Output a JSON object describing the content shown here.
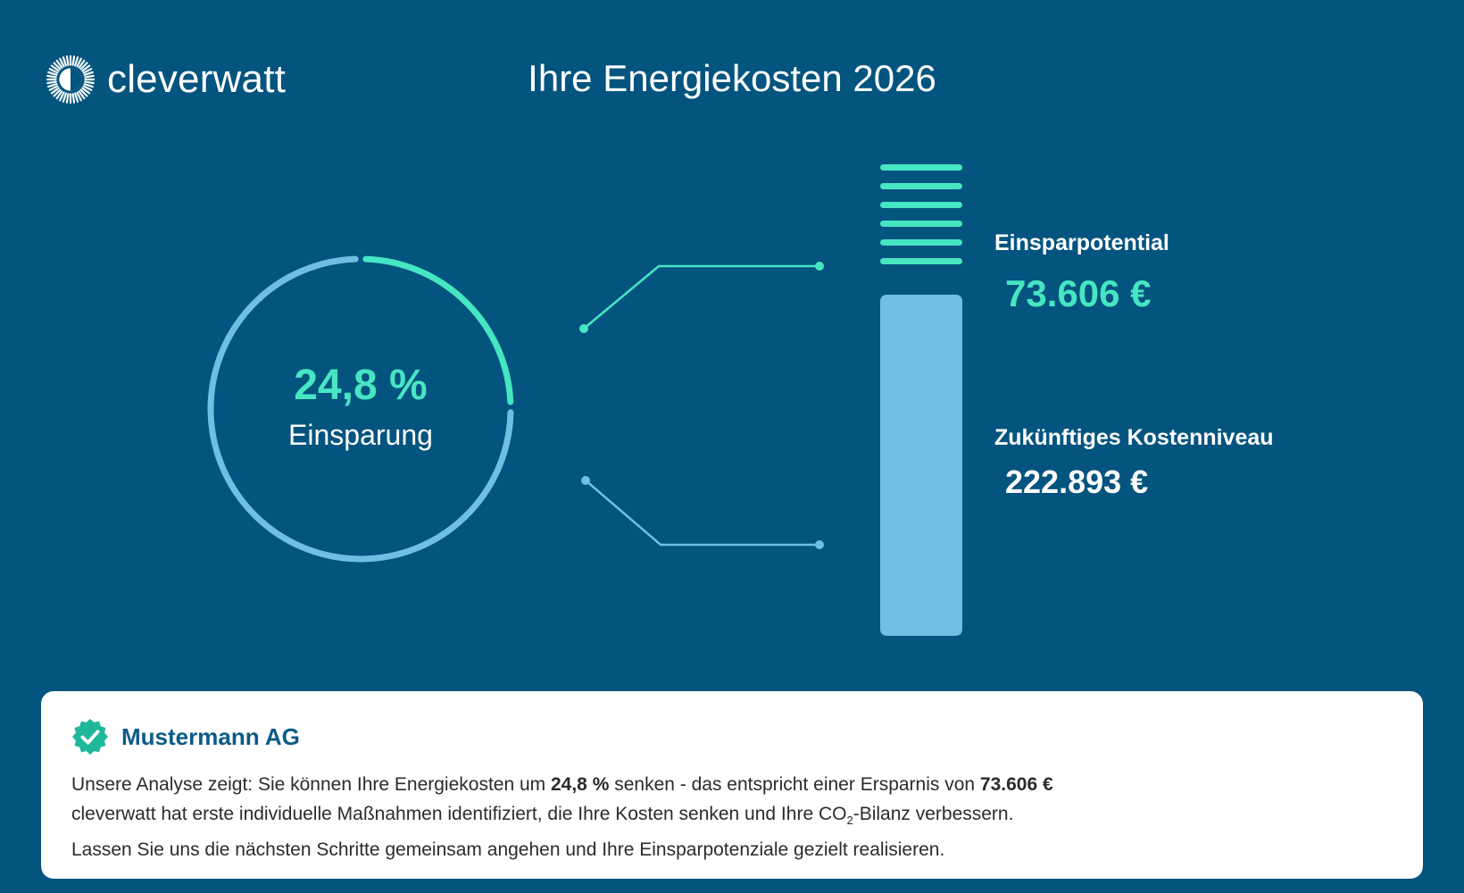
{
  "brand": {
    "name": "cleverwatt"
  },
  "header": {
    "title": "Ihre Energiekosten 2026"
  },
  "donut": {
    "value": "24,8 %",
    "label": "Einsparung",
    "fraction": 0.248,
    "colors": {
      "track": "#6fbfe5",
      "accent": "#46e6c2"
    }
  },
  "bar": {
    "savings_fraction": 0.248,
    "stripe_count": 6,
    "colors": {
      "savings": "#46e6c2",
      "future": "#6fbfe5"
    }
  },
  "metrics": {
    "savings": {
      "label": "Einsparpotential",
      "value": "73.606 €"
    },
    "future": {
      "label": "Zukünftiges Kostenniveau",
      "value": "222.893 €"
    }
  },
  "card": {
    "company": "Mustermann AG",
    "line1": {
      "part1": "Unsere Analyse zeigt: Sie können Ihre Energiekosten um ",
      "percent": "24,8 %",
      "part2": " senken - das entspricht einer Ersparnis von ",
      "amount": "73.606 €"
    },
    "line2": {
      "part1": "cleverwatt hat erste individuelle Maßnahmen identifiziert, die Ihre Kosten senken und Ihre CO",
      "sub": "2",
      "part2": "-Bilanz verbessern."
    },
    "line3": "Lassen Sie uns die nächsten Schritte gemeinsam angehen und Ihre Einsparpotenziale gezielt realisieren."
  },
  "icons": {
    "logo": "sun-ring-logo-icon",
    "verified": "verified-badge-icon"
  }
}
